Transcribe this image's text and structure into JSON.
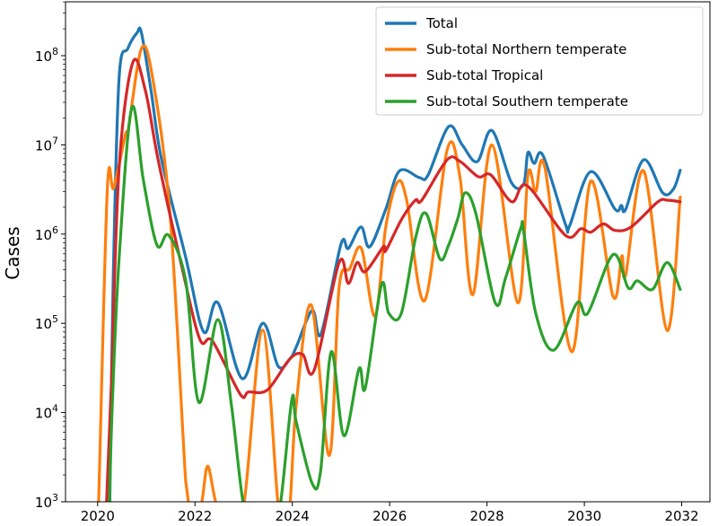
{
  "chart_data": {
    "type": "line",
    "title": "",
    "xlabel": "",
    "ylabel": "Cases",
    "yscale": "log",
    "xlim": [
      2019.34,
      2032.58
    ],
    "ylim": [
      1000,
      400000000
    ],
    "x_ticks": [
      2020,
      2022,
      2024,
      2026,
      2028,
      2030,
      2032
    ],
    "x_tick_labels": [
      "2020",
      "2022",
      "2024",
      "2026",
      "2028",
      "2030",
      "2032"
    ],
    "y_ticks": [
      1000,
      10000,
      100000,
      1000000,
      10000000,
      100000000
    ],
    "y_tick_labels": [
      {
        "base": "10",
        "exp": "3"
      },
      {
        "base": "10",
        "exp": "4"
      },
      {
        "base": "10",
        "exp": "5"
      },
      {
        "base": "10",
        "exp": "6"
      },
      {
        "base": "10",
        "exp": "7"
      },
      {
        "base": "10",
        "exp": "8"
      }
    ],
    "legend_position": "top-right",
    "grid": false,
    "series": [
      {
        "name": "Total",
        "color": "#1f77b4",
        "points": [
          [
            2020.25,
            500
          ],
          [
            2020.32,
            300000.0
          ],
          [
            2020.44,
            56000000.0
          ],
          [
            2020.62,
            120000000.0
          ],
          [
            2020.81,
            180000000.0
          ],
          [
            2020.9,
            180000000.0
          ],
          [
            2021.1,
            40000000.0
          ],
          [
            2021.31,
            7000000.0
          ],
          [
            2021.81,
            550000.0
          ],
          [
            2022.18,
            80000.0
          ],
          [
            2022.47,
            170000.0
          ],
          [
            2022.97,
            24000.0
          ],
          [
            2023.39,
            100000.0
          ],
          [
            2023.71,
            33000.0
          ],
          [
            2023.95,
            40000.0
          ],
          [
            2024.08,
            54000.0
          ],
          [
            2024.41,
            140000.0
          ],
          [
            2024.59,
            76000.0
          ],
          [
            2025.0,
            770000.0
          ],
          [
            2025.15,
            690000.0
          ],
          [
            2025.41,
            1200000.0
          ],
          [
            2025.59,
            720000.0
          ],
          [
            2025.92,
            1900000.0
          ],
          [
            2026.2,
            5100000.0
          ],
          [
            2026.61,
            4300000.0
          ],
          [
            2026.79,
            4600000.0
          ],
          [
            2027.21,
            16000000.0
          ],
          [
            2027.49,
            10000000.0
          ],
          [
            2027.8,
            6500000.0
          ],
          [
            2028.1,
            14500000.0
          ],
          [
            2028.5,
            3800000.0
          ],
          [
            2028.75,
            3600000.0
          ],
          [
            2028.84,
            8200000.0
          ],
          [
            2028.97,
            6200000.0
          ],
          [
            2029.15,
            7600000.0
          ],
          [
            2029.61,
            1300000.0
          ],
          [
            2029.7,
            1250000.0
          ],
          [
            2030.13,
            5000000.0
          ],
          [
            2030.63,
            1900000.0
          ],
          [
            2030.76,
            2100000.0
          ],
          [
            2030.85,
            1900000.0
          ],
          [
            2031.22,
            6800000.0
          ],
          [
            2031.61,
            2900000.0
          ],
          [
            2031.83,
            3200000.0
          ],
          [
            2031.97,
            5200000.0
          ]
        ]
      },
      {
        "name": "Sub-total Northern temperate",
        "color": "#ff7f0e",
        "points": [
          [
            2020.0,
            500
          ],
          [
            2020.02,
            1000
          ],
          [
            2020.2,
            3200000.0
          ],
          [
            2020.33,
            3300000.0
          ],
          [
            2020.57,
            13000000.0
          ],
          [
            2020.63,
            15000000.0
          ],
          [
            2020.9,
            120000000.0
          ],
          [
            2021.13,
            56000000.0
          ],
          [
            2021.49,
            1600000.0
          ],
          [
            2021.81,
            1700.0
          ],
          [
            2021.9,
            300
          ],
          [
            2022.12,
            800
          ],
          [
            2022.26,
            2500.0
          ],
          [
            2022.45,
            800
          ],
          [
            2022.7,
            300
          ],
          [
            2023.0,
            800
          ],
          [
            2023.39,
            84000.0
          ],
          [
            2023.71,
            800
          ],
          [
            2023.85,
            300
          ],
          [
            2023.95,
            800
          ],
          [
            2024.08,
            12000.0
          ],
          [
            2024.39,
            160000.0
          ],
          [
            2024.76,
            3300.0
          ],
          [
            2024.96,
            250000.0
          ],
          [
            2025.18,
            410000.0
          ],
          [
            2025.42,
            690000.0
          ],
          [
            2025.7,
            120000.0
          ],
          [
            2025.92,
            1200000.0
          ],
          [
            2026.16,
            3800000.0
          ],
          [
            2026.35,
            2400000.0
          ],
          [
            2026.72,
            180000.0
          ],
          [
            2027.18,
            8800000.0
          ],
          [
            2027.44,
            4500000.0
          ],
          [
            2027.71,
            210000.0
          ],
          [
            2028.1,
            10000000.0
          ],
          [
            2028.63,
            170000.0
          ],
          [
            2028.84,
            4600000.0
          ],
          [
            2029.0,
            3000000.0
          ],
          [
            2029.19,
            5500000.0
          ],
          [
            2029.74,
            48000.0
          ],
          [
            2030.13,
            3900000.0
          ],
          [
            2030.59,
            200000.0
          ],
          [
            2030.77,
            570000.0
          ],
          [
            2030.85,
            350000.0
          ],
          [
            2031.22,
            5100000.0
          ],
          [
            2031.7,
            83000.0
          ],
          [
            2031.97,
            2600000.0
          ]
        ]
      },
      {
        "name": "Sub-total Tropical",
        "color": "#d62728",
        "points": [
          [
            2020.18,
            500
          ],
          [
            2020.28,
            20000.0
          ],
          [
            2020.44,
            5500000.0
          ],
          [
            2020.72,
            83000000.0
          ],
          [
            2020.98,
            41000000.0
          ],
          [
            2021.25,
            6500000.0
          ],
          [
            2021.73,
            430000.0
          ],
          [
            2022.1,
            66000.0
          ],
          [
            2022.36,
            63000.0
          ],
          [
            2022.93,
            16000.0
          ],
          [
            2023.1,
            17000.0
          ],
          [
            2023.49,
            18000.0
          ],
          [
            2023.95,
            40000.0
          ],
          [
            2024.21,
            45000.0
          ],
          [
            2024.45,
            30000.0
          ],
          [
            2024.96,
            480000.0
          ],
          [
            2025.15,
            280000.0
          ],
          [
            2025.33,
            480000.0
          ],
          [
            2025.5,
            380000.0
          ],
          [
            2025.87,
            720000.0
          ],
          [
            2025.92,
            650000.0
          ],
          [
            2026.24,
            1450000.0
          ],
          [
            2026.53,
            2400000.0
          ],
          [
            2026.66,
            2400000.0
          ],
          [
            2027.18,
            6800000.0
          ],
          [
            2027.45,
            6500000.0
          ],
          [
            2027.82,
            4400000.0
          ],
          [
            2028.08,
            4600000.0
          ],
          [
            2028.51,
            2300000.0
          ],
          [
            2028.82,
            3500000.0
          ],
          [
            2029.61,
            970000.0
          ],
          [
            2029.93,
            1150000.0
          ],
          [
            2030.13,
            1050000.0
          ],
          [
            2030.39,
            1300000.0
          ],
          [
            2030.63,
            1100000.0
          ],
          [
            2030.96,
            1200000.0
          ],
          [
            2031.51,
            2300000.0
          ],
          [
            2031.7,
            2400000.0
          ],
          [
            2031.97,
            2300000.0
          ]
        ]
      },
      {
        "name": "Sub-total Southern temperate",
        "color": "#2ca02c",
        "points": [
          [
            2020.24,
            500
          ],
          [
            2020.3,
            12000.0
          ],
          [
            2020.44,
            530000.0
          ],
          [
            2020.7,
            26000000.0
          ],
          [
            2020.94,
            4000000.0
          ],
          [
            2021.22,
            750000.0
          ],
          [
            2021.46,
            970000.0
          ],
          [
            2021.81,
            300000.0
          ],
          [
            2022.08,
            13000.0
          ],
          [
            2022.47,
            110000.0
          ],
          [
            2022.75,
            12000.0
          ],
          [
            2023.0,
            900
          ],
          [
            2023.2,
            300
          ],
          [
            2023.6,
            300
          ],
          [
            2023.75,
            900
          ],
          [
            2023.99,
            14000.0
          ],
          [
            2024.08,
            7900.0
          ],
          [
            2024.41,
            1600.0
          ],
          [
            2024.58,
            2200.0
          ],
          [
            2024.8,
            48000.0
          ],
          [
            2025.06,
            5500.0
          ],
          [
            2025.37,
            31000.0
          ],
          [
            2025.5,
            19000.0
          ],
          [
            2025.83,
            270000.0
          ],
          [
            2025.98,
            130000.0
          ],
          [
            2026.24,
            130000.0
          ],
          [
            2026.54,
            950000.0
          ],
          [
            2026.75,
            1700000.0
          ],
          [
            2027.03,
            530000.0
          ],
          [
            2027.21,
            750000.0
          ],
          [
            2027.4,
            1500000.0
          ],
          [
            2027.55,
            2900000.0
          ],
          [
            2027.77,
            1700000.0
          ],
          [
            2028.17,
            170000.0
          ],
          [
            2028.38,
            320000.0
          ],
          [
            2028.69,
            1140000.0
          ],
          [
            2028.75,
            1100000.0
          ],
          [
            2029.0,
            130000.0
          ],
          [
            2029.37,
            50000.0
          ],
          [
            2029.85,
            170000.0
          ],
          [
            2030.07,
            130000.0
          ],
          [
            2030.59,
            590000.0
          ],
          [
            2030.9,
            250000.0
          ],
          [
            2031.09,
            300000.0
          ],
          [
            2031.4,
            240000.0
          ],
          [
            2031.7,
            480000.0
          ],
          [
            2031.97,
            240000.0
          ]
        ]
      }
    ]
  }
}
